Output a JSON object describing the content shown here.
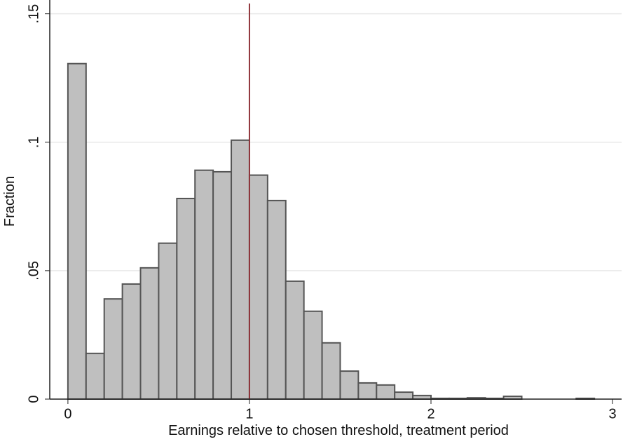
{
  "chart_data": {
    "type": "histogram",
    "x_label": "Earnings relative to chosen threshold, treatment period",
    "y_label": "Fraction",
    "bins": [
      0,
      0.1,
      0.2,
      0.3,
      0.4,
      0.5,
      0.6,
      0.7,
      0.8,
      0.9,
      1.0,
      1.1,
      1.2,
      1.3,
      1.4,
      1.5,
      1.6,
      1.7,
      1.8,
      1.9,
      2.0,
      2.1,
      2.2,
      2.3,
      2.4,
      2.5,
      2.6,
      2.7,
      2.8,
      2.9
    ],
    "values": [
      0.1306,
      0.0178,
      0.039,
      0.0448,
      0.0511,
      0.0607,
      0.0781,
      0.0891,
      0.0885,
      0.1008,
      0.0872,
      0.0773,
      0.0459,
      0.0342,
      0.0219,
      0.0109,
      0.0063,
      0.0055,
      0.0027,
      0.0014,
      0.0003,
      0.0003,
      0.0005,
      0.0003,
      0.0011,
      0,
      0,
      0,
      0.0003
    ],
    "color": "#bfbfbf",
    "edge_color": "#555555",
    "vline": 1,
    "vline_color": "#90353b",
    "xlim": [
      -0.1,
      3.05
    ],
    "ylim": [
      0,
      0.154
    ],
    "xticks": [
      0,
      1,
      2,
      3
    ],
    "yticks": [
      0,
      {
        "value": 0.05,
        "label": ".05"
      },
      {
        "value": 0.1,
        "label": ".1"
      },
      {
        "value": 0.15,
        "label": ".15"
      }
    ],
    "grid": true
  }
}
